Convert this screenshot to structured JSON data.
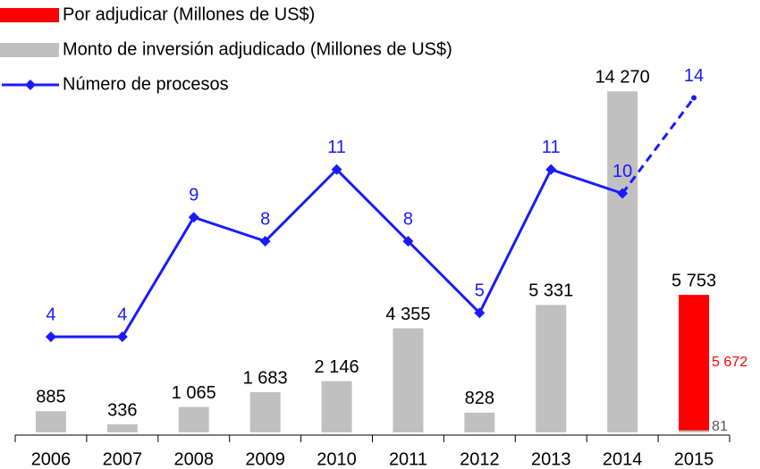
{
  "chart_data": {
    "type": "bar-line",
    "categories": [
      "2006",
      "2007",
      "2008",
      "2009",
      "2010",
      "2011",
      "2012",
      "2013",
      "2014",
      "2015"
    ],
    "series": [
      {
        "name": "Por adjudicar (Millones de US$)",
        "color": "#ff0000",
        "kind": "bar",
        "stack": true,
        "values": [
          null,
          null,
          null,
          null,
          null,
          null,
          null,
          null,
          null,
          5672
        ],
        "value_labels": [
          null,
          null,
          null,
          null,
          null,
          null,
          null,
          null,
          null,
          "5 672"
        ]
      },
      {
        "name": "Monto de inversión adjudicado (Millones de US$)",
        "color": "#c0c0c0",
        "kind": "bar",
        "stack": true,
        "values": [
          885,
          336,
          1065,
          1683,
          2146,
          4355,
          828,
          5331,
          14270,
          81
        ],
        "value_labels": [
          "885",
          "336",
          "1 065",
          "1 683",
          "2 146",
          "4 355",
          "828",
          "5 331",
          "14 270",
          "81"
        ]
      },
      {
        "name": "Número de procesos",
        "color": "#1a1aff",
        "kind": "line",
        "axis": "y2",
        "dash_last_segment": true,
        "values": [
          4,
          4,
          9,
          8,
          11,
          8,
          5,
          11,
          10,
          14
        ]
      }
    ],
    "stack_total": {
      "values": [
        null,
        null,
        null,
        null,
        null,
        null,
        null,
        null,
        null,
        5753
      ],
      "value_labels": [
        null,
        null,
        null,
        null,
        null,
        null,
        null,
        null,
        null,
        "5 753"
      ]
    },
    "ylim": [
      0,
      16000
    ],
    "y2lim": [
      0,
      16
    ]
  }
}
